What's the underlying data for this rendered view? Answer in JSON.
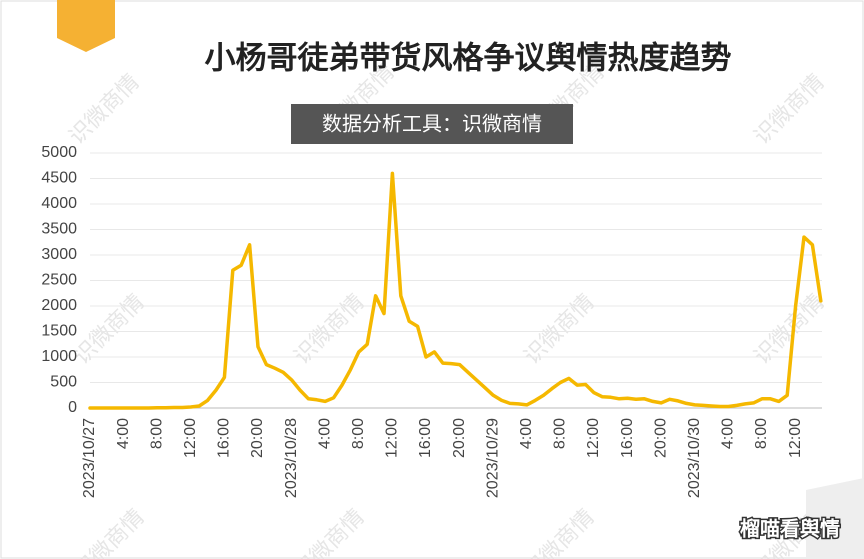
{
  "chart_data": {
    "type": "line",
    "title": "小杨哥徒弟带货风格争议舆情热度趋势",
    "subtitle": "数据分析工具：识微商情",
    "watermark": "识微商情",
    "source_label": "榴喵看舆情",
    "color": "#f5b800",
    "grid": true,
    "ylim": [
      0,
      5000
    ],
    "yticks": [
      0,
      500,
      1000,
      1500,
      2000,
      2500,
      3000,
      3500,
      4000,
      4500,
      5000
    ],
    "categories": [
      "2023/10/27",
      null,
      null,
      null,
      "4:00",
      null,
      null,
      null,
      "8:00",
      null,
      null,
      null,
      "12:00",
      null,
      null,
      null,
      "16:00",
      null,
      null,
      null,
      "20:00",
      null,
      null,
      null,
      "2023/10/28",
      null,
      null,
      null,
      "4:00",
      null,
      null,
      null,
      "8:00",
      null,
      null,
      null,
      "12:00",
      null,
      null,
      null,
      "16:00",
      null,
      null,
      null,
      "20:00",
      null,
      null,
      null,
      "2023/10/29",
      null,
      null,
      null,
      "4:00",
      null,
      null,
      null,
      "8:00",
      null,
      null,
      null,
      "12:00",
      null,
      null,
      null,
      "16:00",
      null,
      null,
      null,
      "20:00",
      null,
      null,
      null,
      "2023/10/30",
      null,
      null,
      null,
      "4:00",
      null,
      null,
      null,
      "8:00",
      null,
      null,
      null,
      "12:00",
      null,
      null,
      null
    ],
    "values": [
      0,
      0,
      0,
      0,
      0,
      0,
      0,
      0,
      5,
      5,
      10,
      10,
      20,
      40,
      150,
      350,
      600,
      2700,
      2800,
      3200,
      1200,
      850,
      780,
      700,
      550,
      350,
      180,
      160,
      130,
      200,
      450,
      750,
      1100,
      1250,
      2200,
      1850,
      4600,
      2200,
      1700,
      1600,
      1000,
      1100,
      880,
      870,
      850,
      700,
      550,
      400,
      250,
      150,
      90,
      80,
      60,
      150,
      250,
      380,
      500,
      580,
      450,
      460,
      300,
      220,
      210,
      180,
      190,
      170,
      180,
      130,
      100,
      170,
      140,
      90,
      60,
      50,
      40,
      30,
      30,
      50,
      80,
      100,
      180,
      180,
      130,
      250,
      2000,
      3350,
      3200,
      2100
    ]
  }
}
